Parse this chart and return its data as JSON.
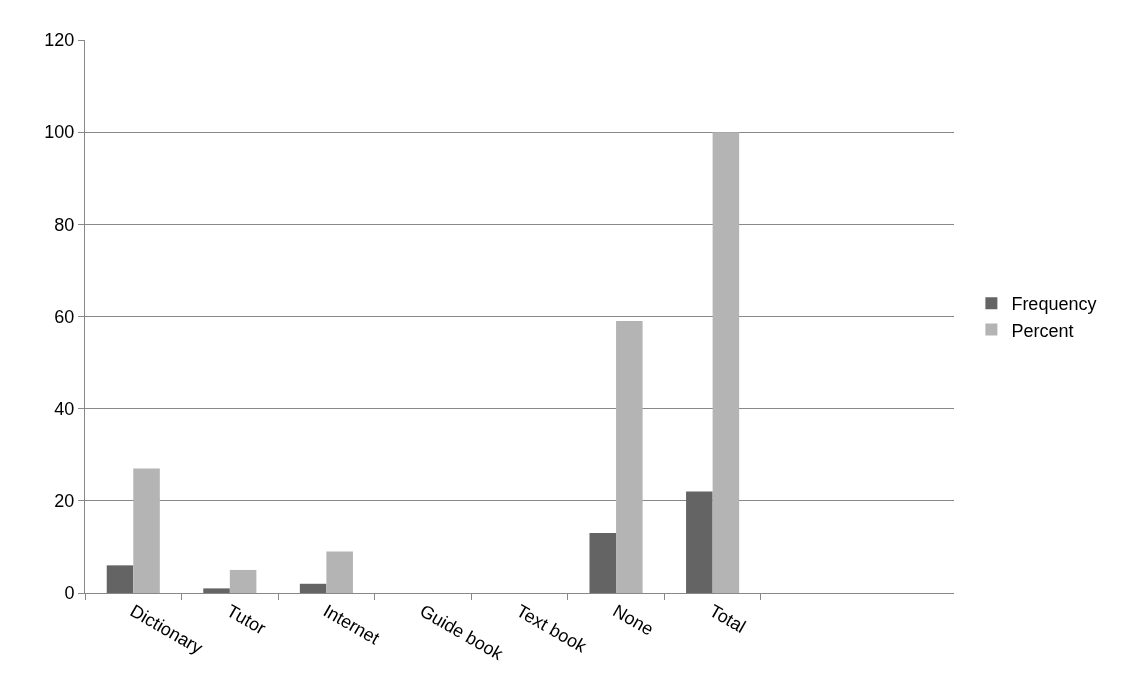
{
  "chart_data": {
    "type": "bar",
    "categories": [
      "Dictionary",
      "Tutor",
      "Internet",
      "Guide book",
      "Text book",
      "None",
      "Total",
      null,
      null
    ],
    "series": [
      {
        "name": "Frequency",
        "color": "#646464",
        "values": [
          6,
          1,
          2,
          0,
          0,
          13,
          22,
          null,
          null
        ]
      },
      {
        "name": "Percent",
        "color": "#b4b4b4",
        "values": [
          27,
          5,
          9,
          0,
          0,
          59,
          100,
          null,
          null
        ]
      }
    ],
    "ylim": [
      0,
      120
    ],
    "yticks": [
      0,
      20,
      40,
      60,
      80,
      100,
      120
    ],
    "grid": "y",
    "legend": "right"
  }
}
